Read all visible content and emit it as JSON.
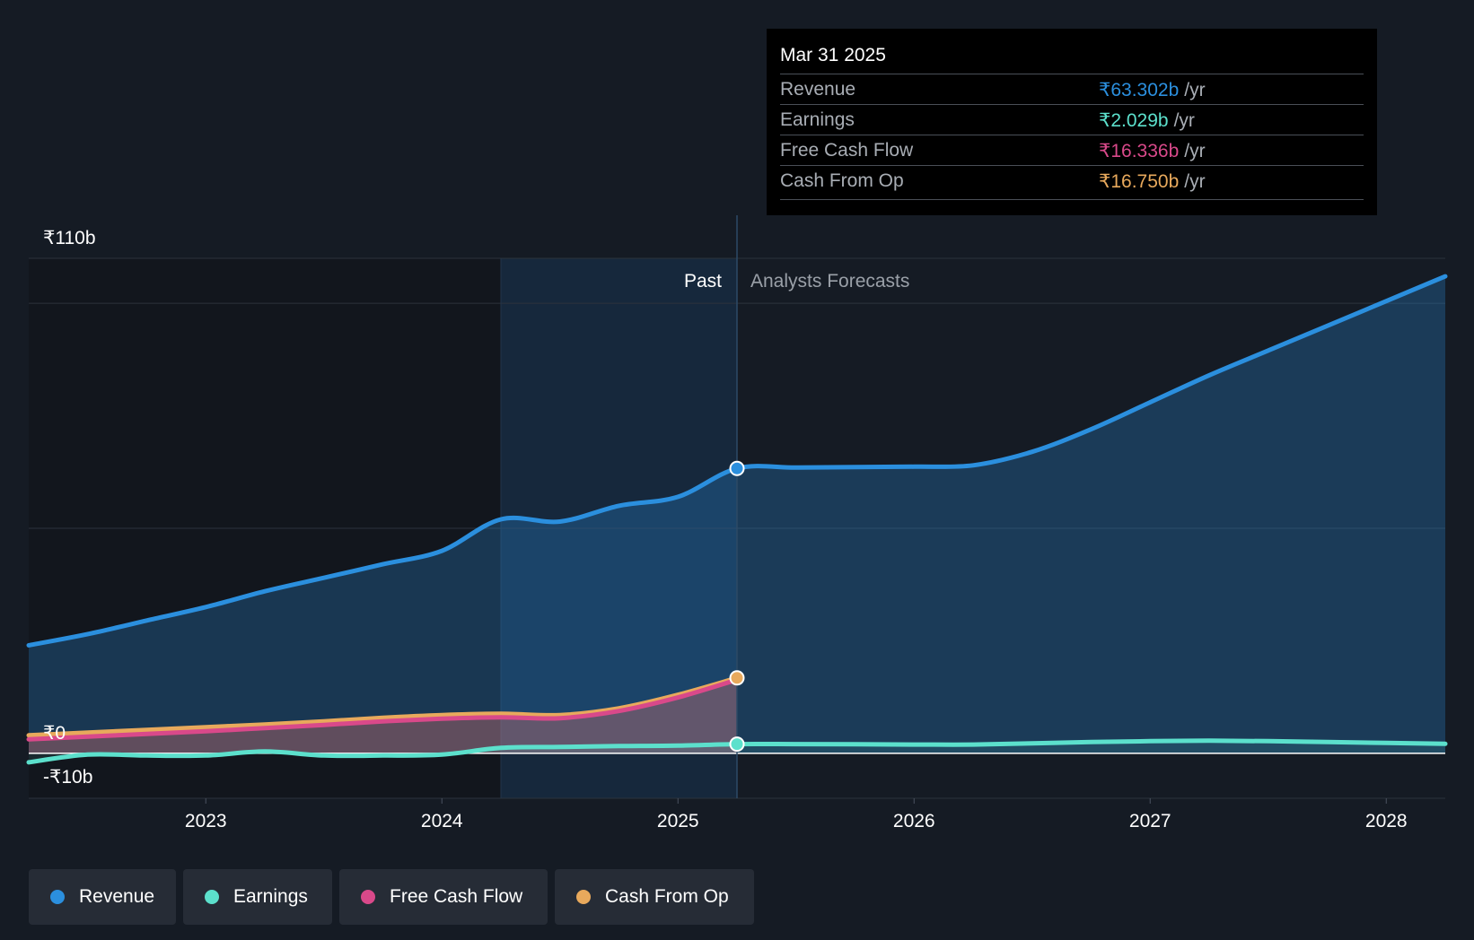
{
  "tooltip": {
    "date": "Mar 31 2025",
    "rows": [
      {
        "label": "Revenue",
        "value": "₹63.302b",
        "unit": "/yr"
      },
      {
        "label": "Earnings",
        "value": "₹2.029b",
        "unit": "/yr"
      },
      {
        "label": "Free Cash Flow",
        "value": "₹16.336b",
        "unit": "/yr"
      },
      {
        "label": "Cash From Op",
        "value": "₹16.750b",
        "unit": "/yr"
      }
    ]
  },
  "colors": {
    "revenue": "#2b8fde",
    "earnings": "#5ce0cc",
    "fcf": "#d9498a",
    "cfo": "#e8a95c",
    "background": "#151b24"
  },
  "legend": [
    {
      "key": "revenue",
      "label": "Revenue"
    },
    {
      "key": "earnings",
      "label": "Earnings"
    },
    {
      "key": "fcf",
      "label": "Free Cash Flow"
    },
    {
      "key": "cfo",
      "label": "Cash From Op"
    }
  ],
  "chart_data": {
    "type": "area",
    "ylim": [
      -10,
      110
    ],
    "y_tick_labels": [
      {
        "value": 110,
        "label": "₹110b"
      },
      {
        "value": 0,
        "label": "₹0"
      },
      {
        "value": -10,
        "label": "-₹10b"
      }
    ],
    "xlim": [
      2022.25,
      2028.25
    ],
    "x_ticks": [
      {
        "value": 2023,
        "label": "2023"
      },
      {
        "value": 2024,
        "label": "2024"
      },
      {
        "value": 2025,
        "label": "2025"
      },
      {
        "value": 2026,
        "label": "2026"
      },
      {
        "value": 2027,
        "label": "2027"
      },
      {
        "value": 2028,
        "label": "2028"
      }
    ],
    "past_label": "Past",
    "forecast_label": "Analysts Forecasts",
    "divider_x": 2025.25,
    "highlight_start_x": 2024.25,
    "series": [
      {
        "key": "revenue",
        "name": "Revenue",
        "x": [
          2022.25,
          2022.5,
          2022.75,
          2023.0,
          2023.25,
          2023.5,
          2023.75,
          2024.0,
          2024.25,
          2024.5,
          2024.75,
          2025.0,
          2025.25,
          2025.5,
          2025.75,
          2026.0,
          2026.25,
          2026.5,
          2026.75,
          2027.0,
          2027.25,
          2027.5,
          2027.75,
          2028.0,
          2028.25
        ],
        "y": [
          24,
          26.5,
          29.5,
          32.5,
          36,
          39,
          42,
          45,
          52,
          51.5,
          55,
          57,
          63.3,
          63.5,
          63.6,
          63.7,
          64,
          67,
          72,
          78,
          84,
          89.5,
          95,
          100.5,
          106
        ]
      },
      {
        "key": "cfo",
        "name": "Cash From Op",
        "x": [
          2022.25,
          2022.5,
          2022.75,
          2023.0,
          2023.25,
          2023.5,
          2023.75,
          2024.0,
          2024.25,
          2024.5,
          2024.75,
          2025.0,
          2025.25
        ],
        "y": [
          4,
          4.6,
          5.2,
          5.8,
          6.4,
          7.1,
          7.9,
          8.5,
          8.8,
          8.5,
          10,
          13,
          16.75
        ]
      },
      {
        "key": "fcf",
        "name": "Free Cash Flow",
        "x": [
          2022.25,
          2022.5,
          2022.75,
          2023.0,
          2023.25,
          2023.5,
          2023.75,
          2024.0,
          2024.25,
          2024.5,
          2024.75,
          2025.0,
          2025.25
        ],
        "y": [
          3.1,
          3.7,
          4.3,
          4.9,
          5.6,
          6.3,
          7.1,
          7.7,
          8,
          7.8,
          9.4,
          12.4,
          16.34
        ]
      },
      {
        "key": "earnings",
        "name": "Earnings",
        "x": [
          2022.25,
          2022.5,
          2022.75,
          2023.0,
          2023.25,
          2023.5,
          2023.75,
          2024.0,
          2024.25,
          2024.5,
          2024.75,
          2025.0,
          2025.25,
          2025.5,
          2025.75,
          2026.0,
          2026.25,
          2026.5,
          2026.75,
          2027.0,
          2027.25,
          2027.5,
          2027.75,
          2028.0,
          2028.25
        ],
        "y": [
          -2,
          -0.3,
          -0.5,
          -0.5,
          0.4,
          -0.5,
          -0.5,
          -0.3,
          1.2,
          1.4,
          1.6,
          1.7,
          2.03,
          2.03,
          2.0,
          1.95,
          1.95,
          2.2,
          2.5,
          2.7,
          2.8,
          2.7,
          2.5,
          2.3,
          2.1
        ]
      }
    ]
  }
}
